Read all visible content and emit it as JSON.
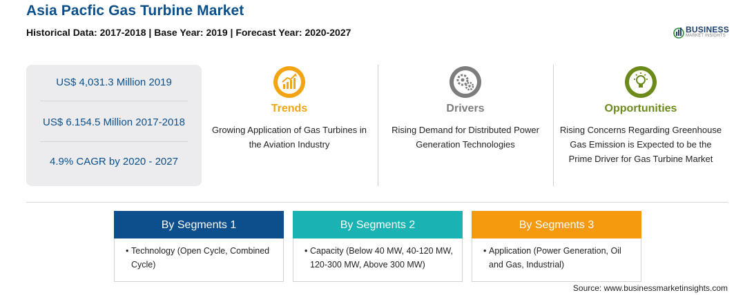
{
  "header": {
    "title": "Asia Pacfic Gas Turbine Market",
    "subtitle": "Historical Data: 2017-2018 | Base Year: 2019 | Forecast Year: 2020-2027"
  },
  "logo": {
    "name": "BUSINESS",
    "tagline": "MARKET INSIGHTS",
    "icon": "bar-chart-globe-icon"
  },
  "stats": [
    {
      "text": "US$ 4,031.3 Million 2019"
    },
    {
      "text": "US$ 6.154.5 Million 2017-2018"
    },
    {
      "text": "4.9% CAGR by 2020 - 2027"
    }
  ],
  "highlights": [
    {
      "label": "Trends",
      "icon": "growth-chart-icon",
      "color": "#f2a413",
      "text": "Growing Application of Gas Turbines in the Aviation Industry"
    },
    {
      "label": "Drivers",
      "icon": "gears-icon",
      "color": "#7d7d7d",
      "text": "Rising Demand for Distributed Power Generation Technologies"
    },
    {
      "label": "Opportunities",
      "icon": "lightbulb-icon",
      "color": "#6c8a1a",
      "text": "Rising Concerns Regarding Greenhouse Gas Emission is Expected to be the Prime Driver for Gas Turbine Market"
    }
  ],
  "segments": [
    {
      "title": "By Segments 1",
      "color": "#0c4f8c",
      "item": "Technology (Open Cycle, Combined Cycle)"
    },
    {
      "title": "By Segments 2",
      "color": "#19b3b3",
      "item": "Capacity (Below 40 MW, 40-120 MW, 120-300 MW, Above 300 MW)"
    },
    {
      "title": "By Segments 3",
      "color": "#f5990f",
      "item": "Application (Power Generation, Oil and Gas, Industrial)"
    }
  ],
  "bullet": "•",
  "source": "Source: www.businessmarketinsights.com"
}
